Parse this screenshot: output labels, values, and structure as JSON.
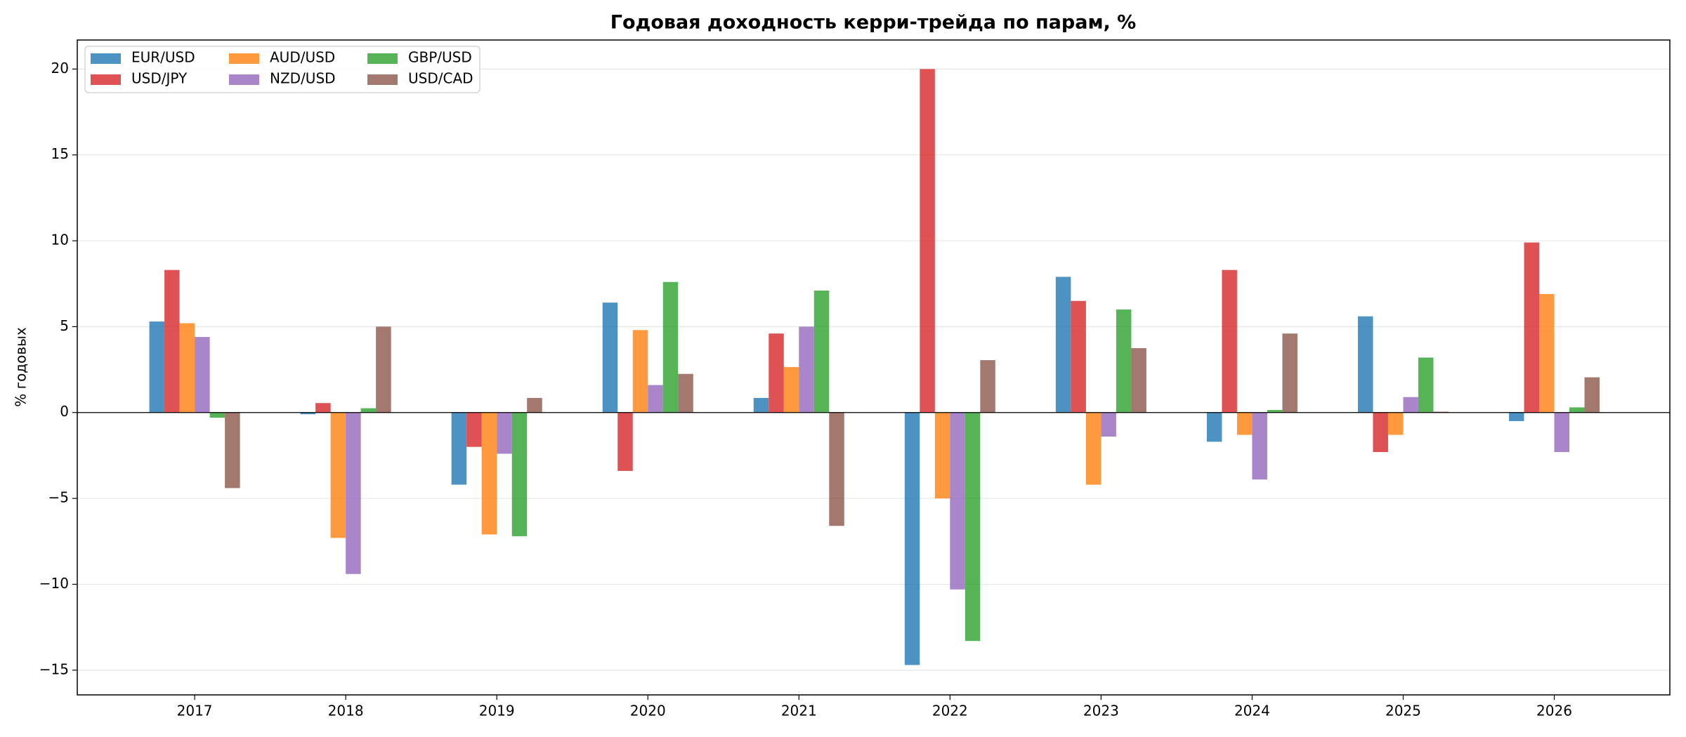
{
  "chart_data": {
    "type": "bar",
    "title": "Годовая доходность керри-трейда по парам, %",
    "ylabel": "% годовых",
    "categories": [
      "2017",
      "2018",
      "2019",
      "2020",
      "2021",
      "2022",
      "2023",
      "2024",
      "2025",
      "2026"
    ],
    "series": [
      {
        "name": "EUR/USD",
        "color": "#1f77b4",
        "values": [
          5.3,
          -0.1,
          -4.2,
          6.4,
          0.85,
          -14.7,
          7.9,
          -1.7,
          5.6,
          -0.5
        ]
      },
      {
        "name": "USD/JPY",
        "color": "#d62728",
        "values": [
          8.3,
          0.55,
          -2.0,
          -3.4,
          4.6,
          20.0,
          6.5,
          8.3,
          -2.3,
          9.9
        ]
      },
      {
        "name": "AUD/USD",
        "color": "#ff7f0e",
        "values": [
          5.2,
          -7.3,
          -7.1,
          4.8,
          2.65,
          -5.0,
          -4.2,
          -1.3,
          -1.3,
          6.9
        ]
      },
      {
        "name": "NZD/USD",
        "color": "#9467bd",
        "values": [
          4.4,
          -9.4,
          -2.4,
          1.6,
          5.0,
          -10.3,
          -1.4,
          -3.9,
          0.9,
          -2.3
        ]
      },
      {
        "name": "GBP/USD",
        "color": "#2ca02c",
        "values": [
          -0.3,
          0.25,
          -7.2,
          7.6,
          7.1,
          -13.3,
          6.0,
          0.15,
          3.2,
          0.3
        ]
      },
      {
        "name": "USD/CAD",
        "color": "#8c564b",
        "values": [
          -4.4,
          5.0,
          0.85,
          2.25,
          -6.6,
          3.05,
          3.75,
          4.6,
          0.05,
          2.05
        ]
      }
    ],
    "ylim": [
      -16.44,
      21.69
    ],
    "yticks": [
      {
        "value": -15,
        "label": "−15"
      },
      {
        "value": -10,
        "label": "−10"
      },
      {
        "value": -5,
        "label": "−5"
      },
      0,
      5,
      10,
      15,
      20
    ],
    "grid": true,
    "legend": "upper left"
  }
}
